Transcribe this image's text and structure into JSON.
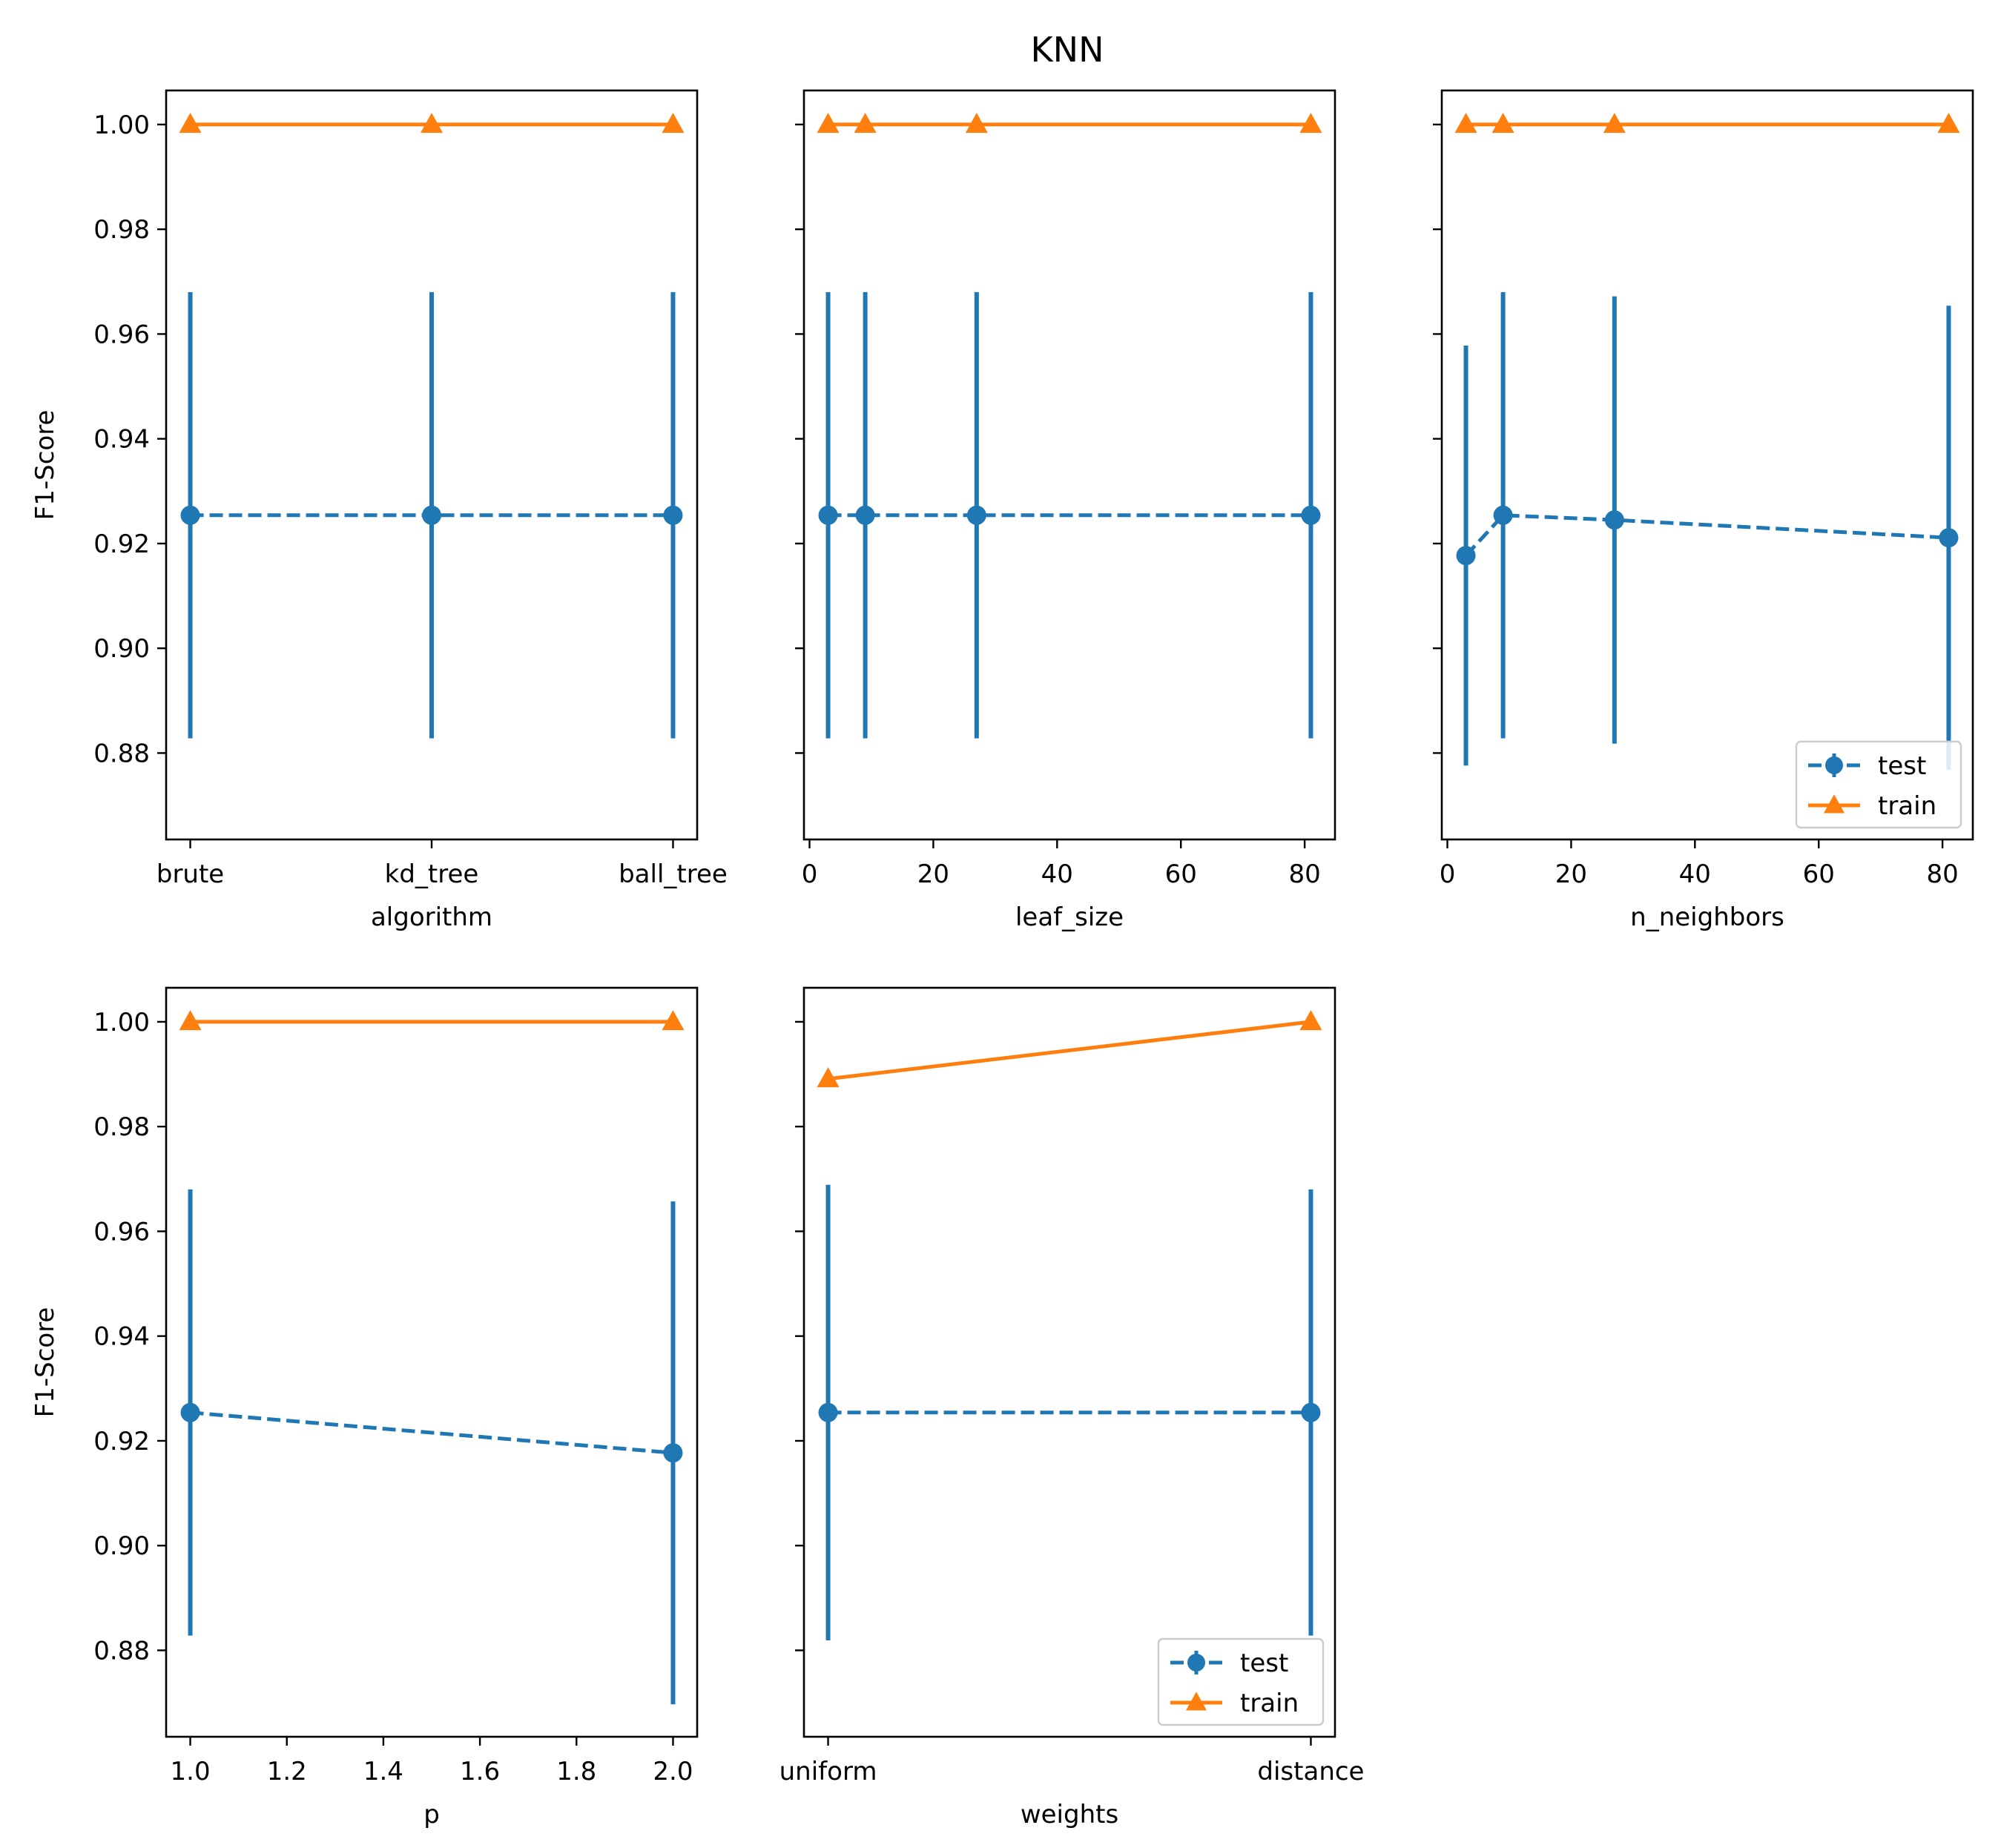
{
  "figure": {
    "title": "KNN"
  },
  "colors": {
    "test": "#1f77b4",
    "train": "#ff7f0e",
    "axis": "#000000",
    "legend_edge": "#cccccc"
  },
  "chart_data": [
    {
      "type": "line",
      "xlabel": "algorithm",
      "ylabel": "F1-Score",
      "x_scale": "categorical",
      "categories": [
        "brute",
        "kd_tree",
        "ball_tree"
      ],
      "ylim": [
        0.8635,
        1.0065
      ],
      "yticks": [
        0.88,
        0.9,
        0.92,
        0.94,
        0.96,
        0.98,
        1.0
      ],
      "ytick_labels": [
        "0.88",
        "0.90",
        "0.92",
        "0.94",
        "0.96",
        "0.98",
        "1.00"
      ],
      "legend": null,
      "series": [
        {
          "name": "test",
          "style": "dashed-circle",
          "x": [
            0,
            1,
            2
          ],
          "values": [
            0.9254,
            0.9254,
            0.9254
          ],
          "err": [
            0.0426,
            0.0426,
            0.0426
          ]
        },
        {
          "name": "train",
          "style": "solid-triangle",
          "x": [
            0,
            1,
            2
          ],
          "values": [
            1.0,
            1.0,
            1.0
          ]
        }
      ]
    },
    {
      "type": "line",
      "xlabel": "leaf_size",
      "ylabel": "",
      "x_scale": "linear",
      "xlim": [
        -0.9,
        84.9
      ],
      "xticks": [
        0,
        20,
        40,
        60,
        80
      ],
      "xtick_labels": [
        "0",
        "20",
        "40",
        "60",
        "80"
      ],
      "ylim": [
        0.8635,
        1.0065
      ],
      "yticks": [
        0.88,
        0.9,
        0.92,
        0.94,
        0.96,
        0.98,
        1.0
      ],
      "ytick_labels": [],
      "legend": null,
      "series": [
        {
          "name": "test",
          "style": "dashed-circle",
          "x": [
            3,
            9,
            27,
            81
          ],
          "values": [
            0.9254,
            0.9254,
            0.9254,
            0.9254
          ],
          "err": [
            0.0426,
            0.0426,
            0.0426,
            0.0426
          ]
        },
        {
          "name": "train",
          "style": "solid-triangle",
          "x": [
            3,
            9,
            27,
            81
          ],
          "values": [
            1.0,
            1.0,
            1.0,
            1.0
          ]
        }
      ]
    },
    {
      "type": "line",
      "xlabel": "n_neighbors",
      "ylabel": "",
      "x_scale": "linear",
      "xlim": [
        -0.9,
        84.9
      ],
      "xticks": [
        0,
        20,
        40,
        60,
        80
      ],
      "xtick_labels": [
        "0",
        "20",
        "40",
        "60",
        "80"
      ],
      "ylim": [
        0.8635,
        1.0065
      ],
      "yticks": [
        0.88,
        0.9,
        0.92,
        0.94,
        0.96,
        0.98,
        1.0
      ],
      "ytick_labels": [],
      "legend": "lower right",
      "series": [
        {
          "name": "test",
          "style": "dashed-circle",
          "x": [
            3,
            9,
            27,
            81
          ],
          "values": [
            0.9177,
            0.9254,
            0.9245,
            0.9211
          ],
          "err": [
            0.0401,
            0.0426,
            0.0427,
            0.0443
          ]
        },
        {
          "name": "train",
          "style": "solid-triangle",
          "x": [
            3,
            9,
            27,
            81
          ],
          "values": [
            1.0,
            1.0,
            1.0,
            1.0
          ]
        }
      ]
    },
    {
      "type": "line",
      "xlabel": "p",
      "ylabel": "F1-Score",
      "x_scale": "linear",
      "xlim": [
        0.95,
        2.05
      ],
      "xticks": [
        1.0,
        1.2,
        1.4,
        1.6,
        1.8,
        2.0
      ],
      "xtick_labels": [
        "1.0",
        "1.2",
        "1.4",
        "1.6",
        "1.8",
        "2.0"
      ],
      "ylim": [
        0.8635,
        1.0065
      ],
      "yticks": [
        0.88,
        0.9,
        0.92,
        0.94,
        0.96,
        0.98,
        1.0
      ],
      "ytick_labels": [
        "0.88",
        "0.90",
        "0.92",
        "0.94",
        "0.96",
        "0.98",
        "1.00"
      ],
      "legend": null,
      "series": [
        {
          "name": "test",
          "style": "dashed-circle",
          "x": [
            1.0,
            2.0
          ],
          "values": [
            0.9254,
            0.9177
          ],
          "err": [
            0.0426,
            0.048
          ]
        },
        {
          "name": "train",
          "style": "solid-triangle",
          "x": [
            1.0,
            2.0
          ],
          "values": [
            1.0,
            1.0
          ]
        }
      ]
    },
    {
      "type": "line",
      "xlabel": "weights",
      "ylabel": "",
      "x_scale": "categorical",
      "categories": [
        "uniform",
        "distance"
      ],
      "ylim": [
        0.8635,
        1.0065
      ],
      "yticks": [
        0.88,
        0.9,
        0.92,
        0.94,
        0.96,
        0.98,
        1.0
      ],
      "ytick_labels": [],
      "legend": "lower right",
      "series": [
        {
          "name": "test",
          "style": "dashed-circle",
          "x": [
            0,
            1
          ],
          "values": [
            0.9254,
            0.9254
          ],
          "err": [
            0.0435,
            0.0426
          ]
        },
        {
          "name": "train",
          "style": "solid-triangle",
          "x": [
            0,
            1
          ],
          "values": [
            0.9891,
            1.0
          ]
        }
      ]
    }
  ]
}
